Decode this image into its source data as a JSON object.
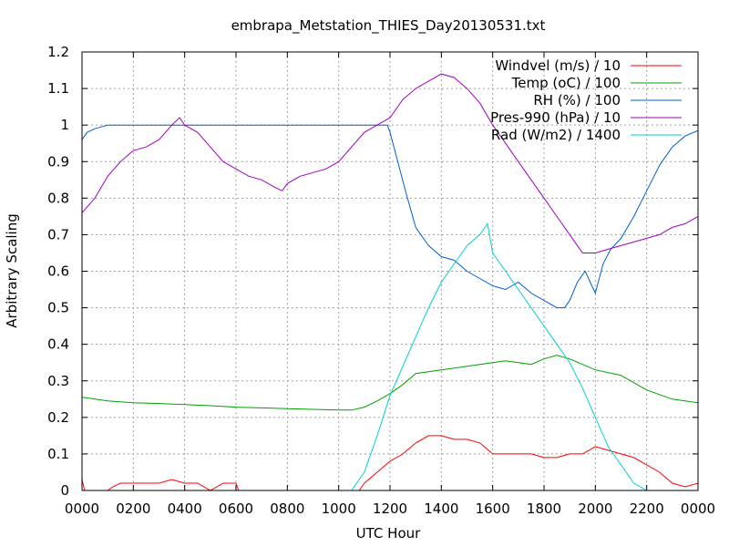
{
  "chart_data": {
    "type": "line",
    "title": "embrapa_Metstation_THIES_Day20130531.txt",
    "xlabel": "UTC Hour",
    "ylabel": "Arbitrary Scaling",
    "xlim": [
      0,
      24
    ],
    "ylim": [
      0,
      1.2
    ],
    "grid": true,
    "legend_position": "top-right",
    "x_ticks": [
      {
        "value": 0,
        "label": "0000"
      },
      {
        "value": 2,
        "label": "0200"
      },
      {
        "value": 4,
        "label": "0400"
      },
      {
        "value": 6,
        "label": "0600"
      },
      {
        "value": 8,
        "label": "0800"
      },
      {
        "value": 10,
        "label": "1000"
      },
      {
        "value": 12,
        "label": "1200"
      },
      {
        "value": 14,
        "label": "1400"
      },
      {
        "value": 16,
        "label": "1600"
      },
      {
        "value": 18,
        "label": "1800"
      },
      {
        "value": 20,
        "label": "2000"
      },
      {
        "value": 22,
        "label": "2200"
      },
      {
        "value": 24,
        "label": "0000"
      }
    ],
    "y_ticks": [
      {
        "value": 0,
        "label": "0"
      },
      {
        "value": 0.1,
        "label": "0.1"
      },
      {
        "value": 0.2,
        "label": "0.2"
      },
      {
        "value": 0.3,
        "label": "0.3"
      },
      {
        "value": 0.4,
        "label": "0.4"
      },
      {
        "value": 0.5,
        "label": "0.5"
      },
      {
        "value": 0.6,
        "label": "0.6"
      },
      {
        "value": 0.7,
        "label": "0.7"
      },
      {
        "value": 0.8,
        "label": "0.8"
      },
      {
        "value": 0.9,
        "label": "0.9"
      },
      {
        "value": 1.0,
        "label": "1"
      },
      {
        "value": 1.1,
        "label": "1.1"
      },
      {
        "value": 1.2,
        "label": "1.2"
      }
    ],
    "series": [
      {
        "name": "Windvel (m/s) / 10",
        "color": "#ff0000",
        "x": [
          0,
          0.1,
          0.2,
          1.0,
          1.2,
          1.5,
          2.0,
          2.5,
          3.0,
          3.5,
          4.0,
          4.5,
          5.0,
          5.5,
          6.0,
          6.1,
          6.2,
          9.0,
          10.0,
          10.8,
          11.0,
          11.5,
          12.0,
          12.5,
          13.0,
          13.5,
          14.0,
          14.5,
          15.0,
          15.5,
          16.0,
          16.5,
          17.0,
          17.5,
          18.0,
          18.5,
          19.0,
          19.5,
          20.0,
          20.5,
          21.0,
          21.5,
          22.0,
          22.5,
          23.0,
          23.5,
          24.0
        ],
        "y": [
          0.03,
          0.0,
          0.0,
          0.0,
          0.01,
          0.02,
          0.02,
          0.02,
          0.02,
          0.03,
          0.02,
          0.02,
          0.0,
          0.02,
          0.02,
          0.0,
          0.0,
          0.0,
          0.0,
          0.0,
          0.02,
          0.05,
          0.08,
          0.1,
          0.13,
          0.15,
          0.15,
          0.14,
          0.14,
          0.13,
          0.1,
          0.1,
          0.1,
          0.1,
          0.09,
          0.09,
          0.1,
          0.1,
          0.12,
          0.11,
          0.1,
          0.09,
          0.07,
          0.05,
          0.02,
          0.01,
          0.02
        ]
      },
      {
        "name": "Temp (oC) / 100",
        "color": "#00a000",
        "x": [
          0,
          1,
          2,
          3,
          4,
          5,
          6,
          7,
          8,
          9,
          10,
          10.5,
          11,
          11.5,
          12,
          12.5,
          13,
          14,
          15,
          16,
          16.5,
          17,
          17.5,
          18,
          18.5,
          19,
          19.5,
          20,
          21,
          22,
          23,
          24
        ],
        "y": [
          0.255,
          0.245,
          0.24,
          0.238,
          0.235,
          0.232,
          0.228,
          0.226,
          0.224,
          0.222,
          0.22,
          0.22,
          0.228,
          0.245,
          0.265,
          0.29,
          0.32,
          0.33,
          0.34,
          0.35,
          0.355,
          0.35,
          0.345,
          0.36,
          0.37,
          0.36,
          0.345,
          0.33,
          0.315,
          0.275,
          0.25,
          0.24
        ]
      },
      {
        "name": "RH (%) / 100",
        "color": "#0060d0",
        "x": [
          0,
          0.2,
          0.5,
          1.0,
          1.5,
          2,
          4,
          6,
          8,
          10,
          11,
          11.9,
          12.0,
          12.3,
          12.6,
          13.0,
          13.5,
          14.0,
          14.5,
          15.0,
          15.5,
          16.0,
          16.5,
          17.0,
          17.5,
          18.0,
          18.5,
          18.8,
          19.0,
          19.3,
          19.6,
          20.0,
          20.3,
          20.6,
          21.0,
          21.5,
          22.0,
          22.5,
          23.0,
          23.5,
          24.0
        ],
        "y": [
          0.96,
          0.98,
          0.99,
          1.0,
          1.0,
          1.0,
          1.0,
          1.0,
          1.0,
          1.0,
          1.0,
          1.0,
          0.98,
          0.9,
          0.82,
          0.72,
          0.67,
          0.64,
          0.63,
          0.6,
          0.58,
          0.56,
          0.55,
          0.57,
          0.54,
          0.52,
          0.5,
          0.5,
          0.52,
          0.57,
          0.6,
          0.54,
          0.62,
          0.66,
          0.69,
          0.75,
          0.82,
          0.89,
          0.94,
          0.97,
          0.985
        ]
      },
      {
        "name": "Pres-990 (hPa) / 10",
        "color": "#a000c0",
        "x": [
          0,
          0.5,
          1.0,
          1.5,
          2.0,
          2.5,
          3.0,
          3.5,
          3.8,
          4.0,
          4.5,
          5.0,
          5.5,
          6.0,
          6.5,
          7.0,
          7.5,
          7.8,
          8.0,
          8.5,
          9.0,
          9.5,
          10.0,
          10.5,
          11.0,
          11.5,
          12.0,
          12.5,
          13.0,
          13.5,
          14.0,
          14.5,
          15.0,
          15.5,
          16.0,
          16.5,
          17.0,
          17.5,
          18.0,
          18.5,
          19.0,
          19.5,
          20.0,
          20.5,
          21.0,
          21.5,
          22.0,
          22.5,
          23.0,
          23.5,
          24.0
        ],
        "y": [
          0.76,
          0.8,
          0.86,
          0.9,
          0.93,
          0.94,
          0.96,
          1.0,
          1.02,
          1.0,
          0.98,
          0.94,
          0.9,
          0.88,
          0.86,
          0.85,
          0.83,
          0.82,
          0.84,
          0.86,
          0.87,
          0.88,
          0.9,
          0.94,
          0.98,
          1.0,
          1.02,
          1.07,
          1.1,
          1.12,
          1.14,
          1.13,
          1.1,
          1.06,
          1.0,
          0.95,
          0.9,
          0.85,
          0.8,
          0.75,
          0.7,
          0.65,
          0.65,
          0.66,
          0.67,
          0.68,
          0.69,
          0.7,
          0.72,
          0.73,
          0.75
        ]
      },
      {
        "name": "Rad (W/m2) / 1400",
        "color": "#00d0d0",
        "x": [
          0,
          9.5,
          10.0,
          10.5,
          11.0,
          11.5,
          12.0,
          12.5,
          13.0,
          13.5,
          14.0,
          14.5,
          15.0,
          15.5,
          15.8,
          16.0,
          16.5,
          17.0,
          17.5,
          18.0,
          18.5,
          19.0,
          19.5,
          20.0,
          20.5,
          21.0,
          21.5,
          22.0,
          24.0
        ],
        "y": [
          0,
          0,
          0.0,
          0.0,
          0.05,
          0.15,
          0.26,
          0.34,
          0.42,
          0.5,
          0.57,
          0.62,
          0.67,
          0.7,
          0.73,
          0.65,
          0.6,
          0.55,
          0.5,
          0.45,
          0.4,
          0.35,
          0.28,
          0.2,
          0.12,
          0.07,
          0.02,
          0.0,
          0
        ]
      }
    ]
  }
}
